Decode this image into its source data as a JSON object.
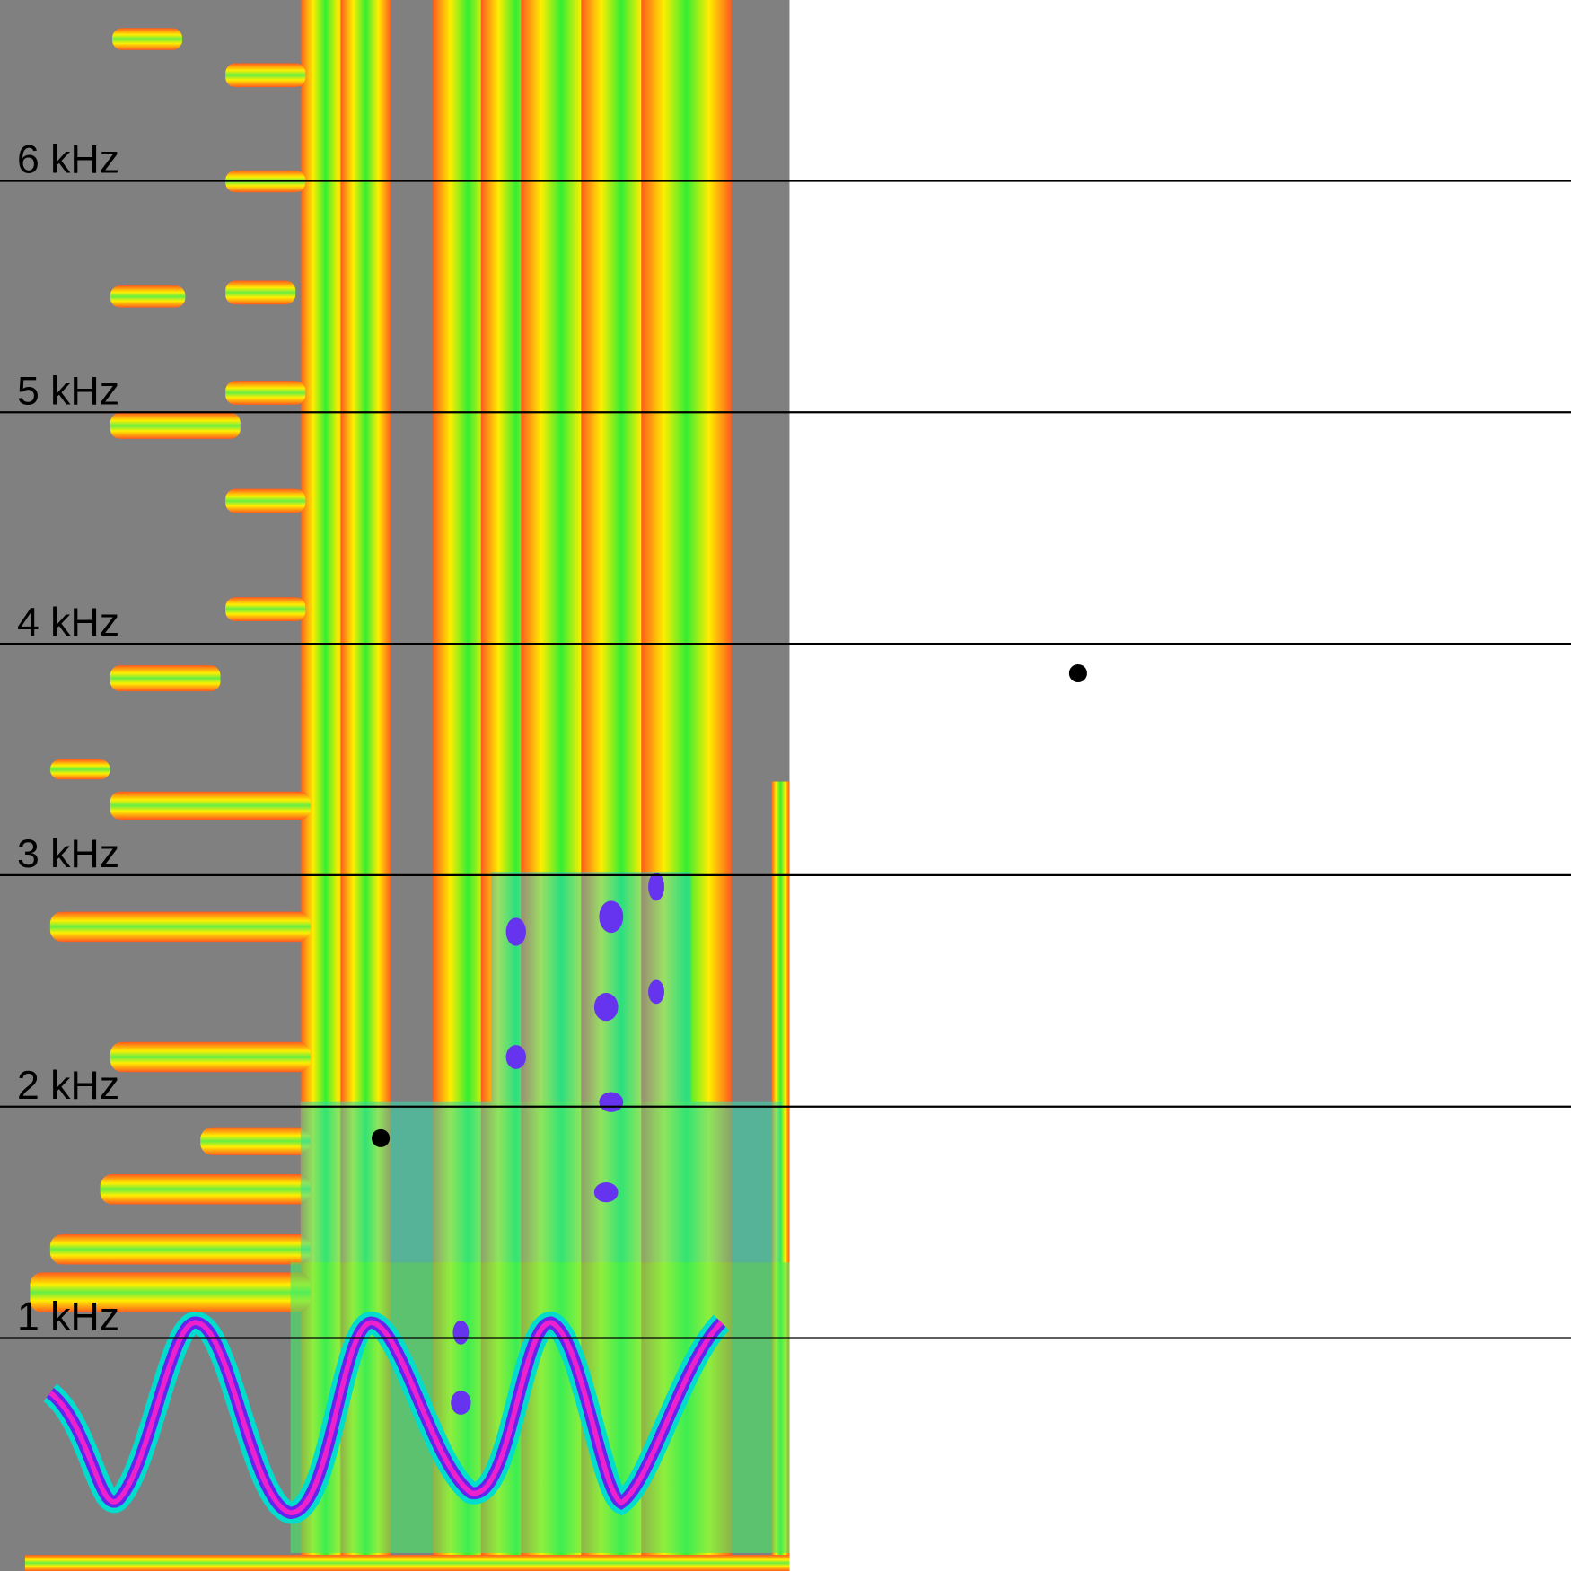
{
  "frequency_labels": [
    "6 kHz",
    "5 kHz",
    "4 kHz",
    "3 kHz",
    "2 kHz",
    "1 kHz"
  ]
}
